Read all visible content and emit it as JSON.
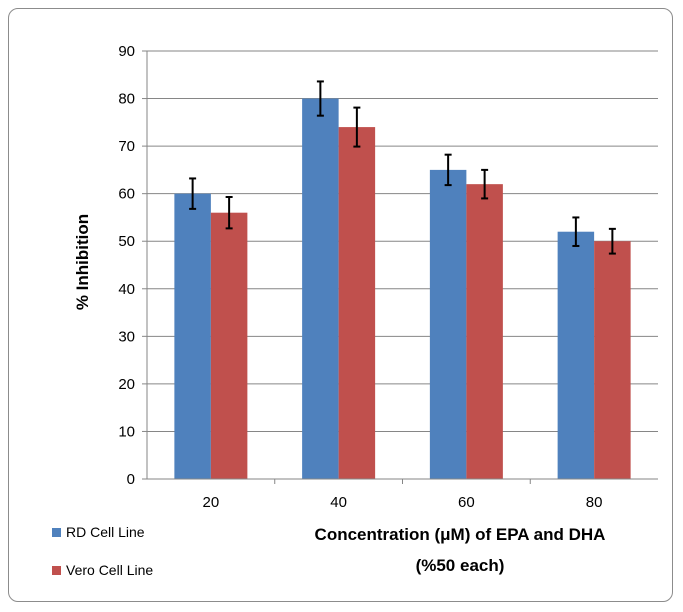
{
  "chart_data": {
    "type": "bar",
    "categories": [
      "20",
      "40",
      "60",
      "80"
    ],
    "series": [
      {
        "name": "RD Cell Line",
        "color": "#4f81bd",
        "values": [
          60,
          80,
          65,
          52
        ],
        "errors": [
          3.2,
          3.6,
          3.2,
          3.0
        ]
      },
      {
        "name": "Vero Cell Line",
        "color": "#c0504d",
        "values": [
          56,
          74,
          62,
          50
        ],
        "errors": [
          3.3,
          4.1,
          3.0,
          2.6
        ]
      }
    ],
    "xlabel": [
      "Concentration (μM) of EPA and DHA",
      "(%50 each)"
    ],
    "ylabel": "% Inhibition",
    "ylim": [
      0,
      90
    ],
    "yticks": [
      "0",
      "10",
      "20",
      "30",
      "40",
      "50",
      "60",
      "70",
      "80",
      "90"
    ],
    "grid": true,
    "legend_position": "bottom-left"
  }
}
